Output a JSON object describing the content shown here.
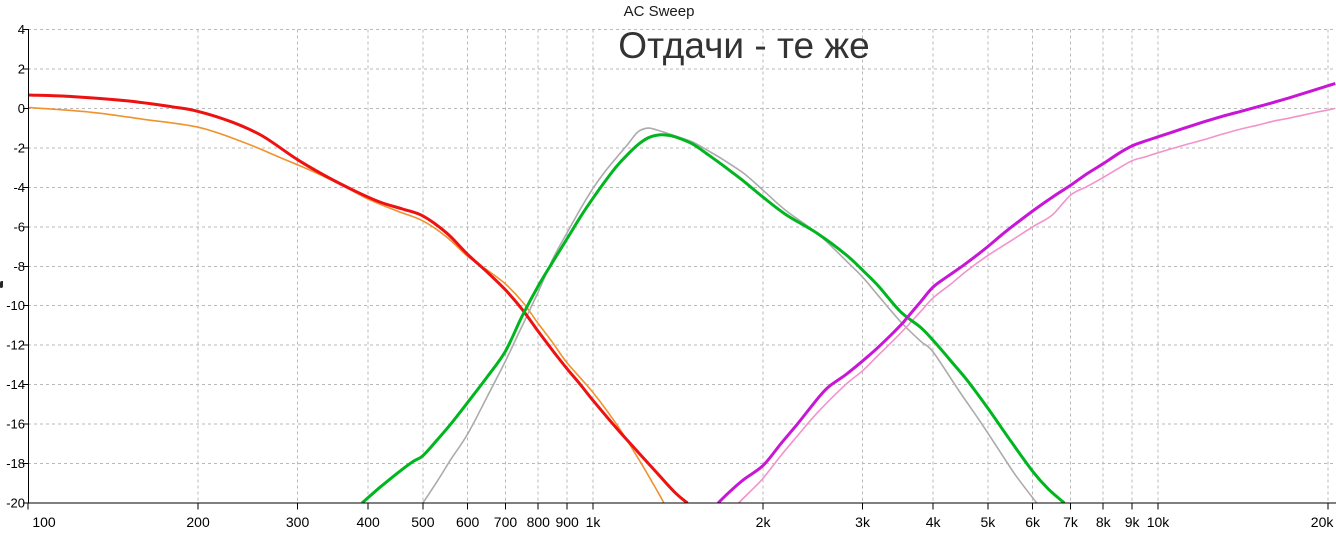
{
  "header": {
    "title": "AC Sweep",
    "annotation": "Отдачи - те же"
  },
  "chart_data": {
    "type": "line",
    "title": "AC Sweep",
    "annotation": "Отдачи - те же",
    "xlabel": "",
    "ylabel": "",
    "x_scale": "log",
    "x_range_hz": [
      100,
      20000
    ],
    "y_range_db": [
      -20,
      4
    ],
    "grid": "dashed",
    "legend_position": "none",
    "grid_color": "#b9b9b9",
    "axis_color": "#000000",
    "title_color": "#1a1a1a",
    "annotation_color": "#333333",
    "y_ticks": [
      {
        "value": 4,
        "label": "4"
      },
      {
        "value": 2,
        "label": "2"
      },
      {
        "value": 0,
        "label": "0"
      },
      {
        "value": -2,
        "label": "-2"
      },
      {
        "value": -4,
        "label": "-4"
      },
      {
        "value": -6,
        "label": "-6"
      },
      {
        "value": -8,
        "label": "-8"
      },
      {
        "value": -10,
        "label": "-10"
      },
      {
        "value": -12,
        "label": "-12"
      },
      {
        "value": -14,
        "label": "-14"
      },
      {
        "value": -16,
        "label": "-16"
      },
      {
        "value": -18,
        "label": "-18"
      },
      {
        "value": -20,
        "label": "-20"
      }
    ],
    "x_ticks": [
      {
        "hz": 100,
        "label": "100"
      },
      {
        "hz": 200,
        "label": "200"
      },
      {
        "hz": 300,
        "label": "300"
      },
      {
        "hz": 400,
        "label": "400"
      },
      {
        "hz": 500,
        "label": "500"
      },
      {
        "hz": 600,
        "label": "600"
      },
      {
        "hz": 700,
        "label": "700"
      },
      {
        "hz": 800,
        "label": "800"
      },
      {
        "hz": 900,
        "label": "900"
      },
      {
        "hz": 1000,
        "label": "1k"
      },
      {
        "hz": 2000,
        "label": "2k"
      },
      {
        "hz": 3000,
        "label": "3k"
      },
      {
        "hz": 4000,
        "label": "4k"
      },
      {
        "hz": 5000,
        "label": "5k"
      },
      {
        "hz": 6000,
        "label": "6k"
      },
      {
        "hz": 7000,
        "label": "7k"
      },
      {
        "hz": 8000,
        "label": "8k"
      },
      {
        "hz": 9000,
        "label": "9k"
      },
      {
        "hz": 10000,
        "label": "10k"
      },
      {
        "hz": 20000,
        "label": "20k"
      }
    ],
    "series": [
      {
        "name": "lowpass-orange",
        "color": "#f0922d",
        "width": 1.6,
        "points": [
          [
            100,
            0.05
          ],
          [
            130,
            -0.2
          ],
          [
            160,
            -0.55
          ],
          [
            200,
            -0.95
          ],
          [
            240,
            -1.7
          ],
          [
            280,
            -2.5
          ],
          [
            320,
            -3.2
          ],
          [
            360,
            -3.9
          ],
          [
            400,
            -4.6
          ],
          [
            450,
            -5.2
          ],
          [
            500,
            -5.7
          ],
          [
            550,
            -6.5
          ],
          [
            600,
            -7.5
          ],
          [
            650,
            -8.2
          ],
          [
            700,
            -8.9
          ],
          [
            750,
            -9.8
          ],
          [
            800,
            -10.9
          ],
          [
            850,
            -11.9
          ],
          [
            900,
            -12.9
          ],
          [
            1000,
            -14.4
          ],
          [
            1100,
            -16.0
          ],
          [
            1200,
            -17.7
          ],
          [
            1300,
            -19.4
          ],
          [
            1335,
            -20
          ]
        ]
      },
      {
        "name": "bandpass-gray",
        "color": "#ababab",
        "width": 1.6,
        "points": [
          [
            500,
            -20
          ],
          [
            530,
            -18.9
          ],
          [
            560,
            -17.8
          ],
          [
            600,
            -16.5
          ],
          [
            650,
            -14.6
          ],
          [
            700,
            -12.8
          ],
          [
            750,
            -11.0
          ],
          [
            800,
            -9.3
          ],
          [
            850,
            -7.6
          ],
          [
            900,
            -6.3
          ],
          [
            950,
            -5.1
          ],
          [
            1000,
            -4.05
          ],
          [
            1050,
            -3.2
          ],
          [
            1100,
            -2.5
          ],
          [
            1150,
            -1.85
          ],
          [
            1200,
            -1.2
          ],
          [
            1250,
            -1.0
          ],
          [
            1300,
            -1.1
          ],
          [
            1350,
            -1.25
          ],
          [
            1400,
            -1.4
          ],
          [
            1500,
            -1.7
          ],
          [
            1600,
            -2.15
          ],
          [
            1700,
            -2.6
          ],
          [
            1850,
            -3.3
          ],
          [
            2000,
            -4.15
          ],
          [
            2200,
            -5.2
          ],
          [
            2500,
            -6.35
          ],
          [
            2800,
            -7.7
          ],
          [
            3000,
            -8.55
          ],
          [
            3200,
            -9.5
          ],
          [
            3500,
            -10.8
          ],
          [
            3800,
            -11.8
          ],
          [
            4000,
            -12.35
          ],
          [
            4440,
            -14.3
          ],
          [
            4800,
            -15.7
          ],
          [
            5200,
            -17.2
          ],
          [
            5600,
            -18.6
          ],
          [
            6100,
            -20
          ]
        ]
      },
      {
        "name": "highpass-pink",
        "color": "#f293cc",
        "width": 1.6,
        "points": [
          [
            1810,
            -20
          ],
          [
            1900,
            -19.4
          ],
          [
            2000,
            -18.75
          ],
          [
            2150,
            -17.6
          ],
          [
            2300,
            -16.6
          ],
          [
            2500,
            -15.4
          ],
          [
            2800,
            -14.0
          ],
          [
            3000,
            -13.3
          ],
          [
            3200,
            -12.5
          ],
          [
            3500,
            -11.4
          ],
          [
            3800,
            -10.3
          ],
          [
            4000,
            -9.6
          ],
          [
            4300,
            -8.9
          ],
          [
            4600,
            -8.2
          ],
          [
            5000,
            -7.45
          ],
          [
            5500,
            -6.7
          ],
          [
            6000,
            -6.0
          ],
          [
            6500,
            -5.4
          ],
          [
            7000,
            -4.4
          ],
          [
            7500,
            -3.95
          ],
          [
            8000,
            -3.5
          ],
          [
            8500,
            -3.05
          ],
          [
            9000,
            -2.65
          ],
          [
            9500,
            -2.45
          ],
          [
            10000,
            -2.25
          ],
          [
            11000,
            -1.9
          ],
          [
            12000,
            -1.6
          ],
          [
            13000,
            -1.3
          ],
          [
            14000,
            -1.05
          ],
          [
            15000,
            -0.85
          ],
          [
            16000,
            -0.65
          ],
          [
            17000,
            -0.5
          ],
          [
            18000,
            -0.35
          ],
          [
            19000,
            -0.2
          ],
          [
            20000,
            -0.08
          ],
          [
            20600,
            0.0
          ]
        ]
      },
      {
        "name": "lowpass-red",
        "color": "#ee1111",
        "width": 3,
        "points": [
          [
            100,
            0.68
          ],
          [
            120,
            0.6
          ],
          [
            150,
            0.38
          ],
          [
            180,
            0.08
          ],
          [
            200,
            -0.15
          ],
          [
            230,
            -0.7
          ],
          [
            260,
            -1.4
          ],
          [
            300,
            -2.6
          ],
          [
            340,
            -3.5
          ],
          [
            380,
            -4.2
          ],
          [
            420,
            -4.75
          ],
          [
            460,
            -5.1
          ],
          [
            500,
            -5.45
          ],
          [
            550,
            -6.3
          ],
          [
            600,
            -7.4
          ],
          [
            650,
            -8.3
          ],
          [
            700,
            -9.2
          ],
          [
            750,
            -10.2
          ],
          [
            800,
            -11.3
          ],
          [
            850,
            -12.3
          ],
          [
            900,
            -13.2
          ],
          [
            950,
            -14.0
          ],
          [
            1000,
            -14.8
          ],
          [
            1100,
            -16.2
          ],
          [
            1200,
            -17.4
          ],
          [
            1300,
            -18.5
          ],
          [
            1400,
            -19.5
          ],
          [
            1470,
            -20
          ]
        ]
      },
      {
        "name": "bandpass-green",
        "color": "#00b61e",
        "width": 3,
        "points": [
          [
            390,
            -20
          ],
          [
            420,
            -19.2
          ],
          [
            450,
            -18.5
          ],
          [
            480,
            -17.9
          ],
          [
            500,
            -17.6
          ],
          [
            530,
            -16.8
          ],
          [
            560,
            -16.0
          ],
          [
            600,
            -14.9
          ],
          [
            650,
            -13.6
          ],
          [
            700,
            -12.3
          ],
          [
            750,
            -10.5
          ],
          [
            800,
            -9.0
          ],
          [
            850,
            -7.75
          ],
          [
            900,
            -6.6
          ],
          [
            950,
            -5.5
          ],
          [
            1000,
            -4.55
          ],
          [
            1050,
            -3.7
          ],
          [
            1100,
            -2.95
          ],
          [
            1150,
            -2.35
          ],
          [
            1200,
            -1.85
          ],
          [
            1250,
            -1.5
          ],
          [
            1300,
            -1.35
          ],
          [
            1350,
            -1.35
          ],
          [
            1400,
            -1.45
          ],
          [
            1500,
            -1.8
          ],
          [
            1600,
            -2.35
          ],
          [
            1700,
            -2.9
          ],
          [
            1850,
            -3.7
          ],
          [
            2000,
            -4.5
          ],
          [
            2200,
            -5.4
          ],
          [
            2500,
            -6.35
          ],
          [
            2800,
            -7.4
          ],
          [
            3000,
            -8.2
          ],
          [
            3200,
            -9.0
          ],
          [
            3500,
            -10.3
          ],
          [
            3800,
            -11.1
          ],
          [
            4000,
            -11.76
          ],
          [
            4300,
            -12.8
          ],
          [
            4600,
            -13.8
          ],
          [
            5000,
            -15.2
          ],
          [
            5500,
            -16.9
          ],
          [
            6000,
            -18.4
          ],
          [
            6400,
            -19.3
          ],
          [
            6830,
            -20
          ]
        ]
      },
      {
        "name": "highpass-magenta",
        "color": "#c716d6",
        "width": 3,
        "points": [
          [
            1665,
            -20
          ],
          [
            1750,
            -19.4
          ],
          [
            1850,
            -18.8
          ],
          [
            2000,
            -18.1
          ],
          [
            2150,
            -17.0
          ],
          [
            2300,
            -16.0
          ],
          [
            2500,
            -14.7
          ],
          [
            2615,
            -14.1
          ],
          [
            2800,
            -13.5
          ],
          [
            3000,
            -12.8
          ],
          [
            3200,
            -12.1
          ],
          [
            3500,
            -11.0
          ],
          [
            3585,
            -10.66
          ],
          [
            3800,
            -9.8
          ],
          [
            4000,
            -9.05
          ],
          [
            4250,
            -8.5
          ],
          [
            4500,
            -8.0
          ],
          [
            4750,
            -7.5
          ],
          [
            5000,
            -7.0
          ],
          [
            5400,
            -6.2
          ],
          [
            6000,
            -5.2
          ],
          [
            6500,
            -4.5
          ],
          [
            7000,
            -3.9
          ],
          [
            7500,
            -3.3
          ],
          [
            8000,
            -2.8
          ],
          [
            8500,
            -2.3
          ],
          [
            9000,
            -1.9
          ],
          [
            9500,
            -1.65
          ],
          [
            10000,
            -1.44
          ],
          [
            11000,
            -1.05
          ],
          [
            12000,
            -0.7
          ],
          [
            13000,
            -0.4
          ],
          [
            14000,
            -0.15
          ],
          [
            15000,
            0.08
          ],
          [
            16000,
            0.3
          ],
          [
            17000,
            0.52
          ],
          [
            18000,
            0.74
          ],
          [
            19000,
            0.95
          ],
          [
            20000,
            1.15
          ],
          [
            20600,
            1.27
          ]
        ]
      }
    ]
  }
}
